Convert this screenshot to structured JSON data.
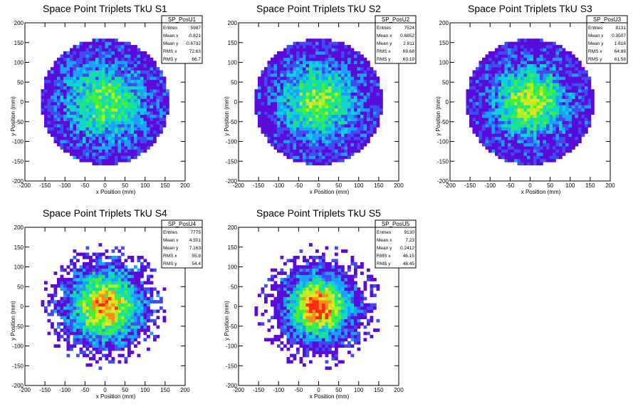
{
  "chart_data": [
    {
      "type": "heatmap",
      "title": "Space Point Triplets TkU S1",
      "xlabel": "x Position (mm)",
      "ylabel": "y Position (mm)",
      "xlim": [
        -200,
        200
      ],
      "ylim": [
        -200,
        200
      ],
      "xticks": [
        -200,
        -150,
        -100,
        -50,
        0,
        50,
        100,
        150,
        200
      ],
      "yticks": [
        -200,
        -150,
        -100,
        -50,
        0,
        50,
        100,
        150,
        200
      ],
      "stats": {
        "name": "SP_PosU1",
        "rows": [
          {
            "label": "Entries",
            "value": "5987"
          },
          {
            "label": "Mean x",
            "value": "-0.821"
          },
          {
            "label": "Mean y",
            "value": "-0.6732"
          },
          {
            "label": "RMS x",
            "value": "72.63"
          },
          {
            "label": "RMS y",
            "value": "66.7"
          }
        ]
      },
      "distribution": {
        "shape": "disc",
        "radius_mm": 160,
        "rms_mm": 70,
        "core_fraction": 0.55,
        "bin_mm": 8
      },
      "grid": false,
      "legend": "none"
    },
    {
      "type": "heatmap",
      "title": "Space Point Triplets TkU S2",
      "xlabel": "x Position (mm)",
      "ylabel": "y Position (mm)",
      "xlim": [
        -200,
        200
      ],
      "ylim": [
        -200,
        200
      ],
      "xticks": [
        -200,
        -150,
        -100,
        -50,
        0,
        50,
        100,
        150,
        200
      ],
      "yticks": [
        -200,
        -150,
        -100,
        -50,
        0,
        50,
        100,
        150,
        200
      ],
      "stats": {
        "name": "SP_PosU2",
        "rows": [
          {
            "label": "Entries",
            "value": "7524"
          },
          {
            "label": "Mean x",
            "value": "0.6852"
          },
          {
            "label": "Mean y",
            "value": "2.811"
          },
          {
            "label": "RMS x",
            "value": "69.68"
          },
          {
            "label": "RMS y",
            "value": "63.19"
          }
        ]
      },
      "distribution": {
        "shape": "disc",
        "radius_mm": 160,
        "rms_mm": 66,
        "core_fraction": 0.6,
        "bin_mm": 8
      },
      "grid": false,
      "legend": "none"
    },
    {
      "type": "heatmap",
      "title": "Space Point Triplets TkU S3",
      "xlabel": "x Position (mm)",
      "ylabel": "y Position (mm)",
      "xlim": [
        -200,
        200
      ],
      "ylim": [
        -200,
        200
      ],
      "xticks": [
        -200,
        -150,
        -100,
        -50,
        0,
        50,
        100,
        150,
        200
      ],
      "yticks": [
        -200,
        -150,
        -100,
        -50,
        0,
        50,
        100,
        150,
        200
      ],
      "stats": {
        "name": "SP_PosU3",
        "rows": [
          {
            "label": "Entries",
            "value": "8131"
          },
          {
            "label": "Mean x",
            "value": "0.3507"
          },
          {
            "label": "Mean y",
            "value": "1.616"
          },
          {
            "label": "RMS x",
            "value": "64.89"
          },
          {
            "label": "RMS y",
            "value": "61.58"
          }
        ]
      },
      "distribution": {
        "shape": "disc",
        "radius_mm": 160,
        "rms_mm": 63,
        "core_fraction": 0.65,
        "bin_mm": 8
      },
      "grid": false,
      "legend": "none"
    },
    {
      "type": "heatmap",
      "title": "Space Point Triplets TkU S4",
      "xlabel": "x Position (mm)",
      "ylabel": "y Position (mm)",
      "xlim": [
        -200,
        200
      ],
      "ylim": [
        -200,
        200
      ],
      "xticks": [
        -200,
        -150,
        -100,
        -50,
        0,
        50,
        100,
        150,
        200
      ],
      "yticks": [
        -200,
        -150,
        -100,
        -50,
        0,
        50,
        100,
        150,
        200
      ],
      "stats": {
        "name": "SP_PosU4",
        "rows": [
          {
            "label": "Entries",
            "value": "7775"
          },
          {
            "label": "Mean x",
            "value": "4.501"
          },
          {
            "label": "Mean y",
            "value": "7.163"
          },
          {
            "label": "RMS x",
            "value": "55.8"
          },
          {
            "label": "RMS y",
            "value": "54.4"
          }
        ]
      },
      "distribution": {
        "shape": "disc",
        "radius_mm": 160,
        "rms_mm": 55,
        "core_fraction": 0.85,
        "bin_mm": 8
      },
      "grid": false,
      "legend": "none"
    },
    {
      "type": "heatmap",
      "title": "Space Point Triplets TkU S5",
      "xlabel": "x Position (mm)",
      "ylabel": "y Position (mm)",
      "xlim": [
        -200,
        200
      ],
      "ylim": [
        -200,
        200
      ],
      "xticks": [
        -200,
        -150,
        -100,
        -50,
        0,
        50,
        100,
        150,
        200
      ],
      "yticks": [
        -200,
        -150,
        -100,
        -50,
        0,
        50,
        100,
        150,
        200
      ],
      "stats": {
        "name": "SP_PosU5",
        "rows": [
          {
            "label": "Entries",
            "value": "9130"
          },
          {
            "label": "Mean x",
            "value": "7.23"
          },
          {
            "label": "Mean y",
            "value": "0.2412"
          },
          {
            "label": "RMS x",
            "value": "46.15"
          },
          {
            "label": "RMS y",
            "value": "48.45"
          }
        ]
      },
      "distribution": {
        "shape": "disc",
        "radius_mm": 160,
        "rms_mm": 46,
        "core_fraction": 1.0,
        "bin_mm": 8
      },
      "grid": false,
      "legend": "none"
    }
  ],
  "colors": {
    "palette": [
      "#5a0bd9",
      "#3f4cf0",
      "#1aa0ff",
      "#10d0d8",
      "#19e38b",
      "#41f03c",
      "#aef026",
      "#f0e020",
      "#ff8c1a",
      "#ff2a14"
    ],
    "axis": "#000000",
    "background": "#ffffff"
  }
}
